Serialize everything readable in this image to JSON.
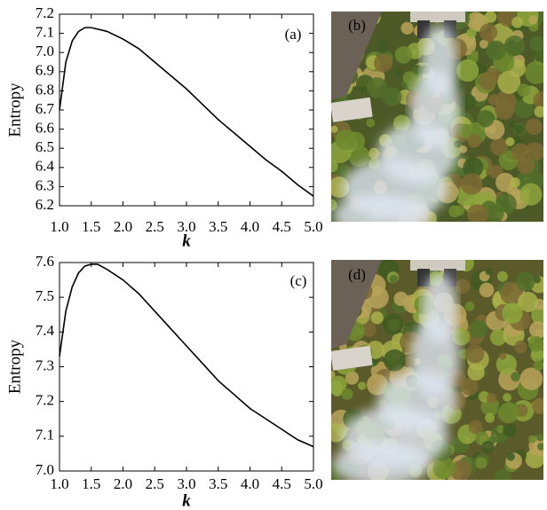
{
  "chart_data": [
    {
      "type": "line",
      "annotation": "(a)",
      "y_label": "Entropy",
      "x_label": "k",
      "x": [
        1.0,
        1.1,
        1.2,
        1.3,
        1.4,
        1.5,
        1.75,
        2.0,
        2.25,
        2.5,
        2.75,
        3.0,
        3.25,
        3.5,
        3.75,
        4.0,
        4.25,
        4.5,
        4.75,
        5.0
      ],
      "values": [
        6.7,
        6.95,
        7.06,
        7.11,
        7.13,
        7.13,
        7.11,
        7.07,
        7.02,
        6.95,
        6.88,
        6.81,
        6.73,
        6.65,
        6.58,
        6.51,
        6.44,
        6.38,
        6.31,
        6.25
      ],
      "color": "#000000",
      "xlim": [
        1.0,
        5.0
      ],
      "xticks": [
        {
          "value": 1,
          "label": "1.0"
        },
        1.5,
        {
          "value": 2,
          "label": "2.0"
        },
        2.5,
        {
          "value": 3,
          "label": "3.0"
        },
        3.5,
        {
          "value": 4,
          "label": "4.0"
        },
        4.5,
        {
          "value": 5,
          "label": "5.0"
        }
      ],
      "ylim": [
        6.2,
        7.2
      ],
      "yticks": [
        6.2,
        6.3,
        6.4,
        6.5,
        6.6,
        6.7,
        6.8,
        6.9,
        {
          "value": 7,
          "label": "7.0"
        },
        7.1,
        7.2
      ]
    },
    {
      "type": "line",
      "annotation": "(c)",
      "y_label": "Entropy",
      "x_label": "k",
      "x": [
        1.0,
        1.1,
        1.2,
        1.3,
        1.4,
        1.5,
        1.6,
        1.75,
        2.0,
        2.25,
        2.5,
        2.75,
        3.0,
        3.25,
        3.5,
        3.75,
        4.0,
        4.25,
        4.5,
        4.75,
        5.0
      ],
      "values": [
        7.33,
        7.46,
        7.53,
        7.57,
        7.59,
        7.595,
        7.595,
        7.58,
        7.55,
        7.51,
        7.46,
        7.41,
        7.36,
        7.31,
        7.26,
        7.22,
        7.18,
        7.15,
        7.12,
        7.09,
        7.07
      ],
      "color": "#000000",
      "xlim": [
        1.0,
        5.0
      ],
      "xticks": [
        {
          "value": 1,
          "label": "1.0"
        },
        1.5,
        {
          "value": 2,
          "label": "2.0"
        },
        2.5,
        {
          "value": 3,
          "label": "3.0"
        },
        3.5,
        {
          "value": 4,
          "label": "4.0"
        },
        4.5,
        {
          "value": 5,
          "label": "5.0"
        }
      ],
      "ylim": [
        7.0,
        7.6
      ],
      "yticks": [
        {
          "value": 7,
          "label": "7.0"
        },
        7.1,
        7.2,
        7.3,
        7.4,
        7.5,
        7.6
      ]
    }
  ],
  "images": [
    {
      "label": "(b)"
    },
    {
      "label": "(d)"
    }
  ]
}
